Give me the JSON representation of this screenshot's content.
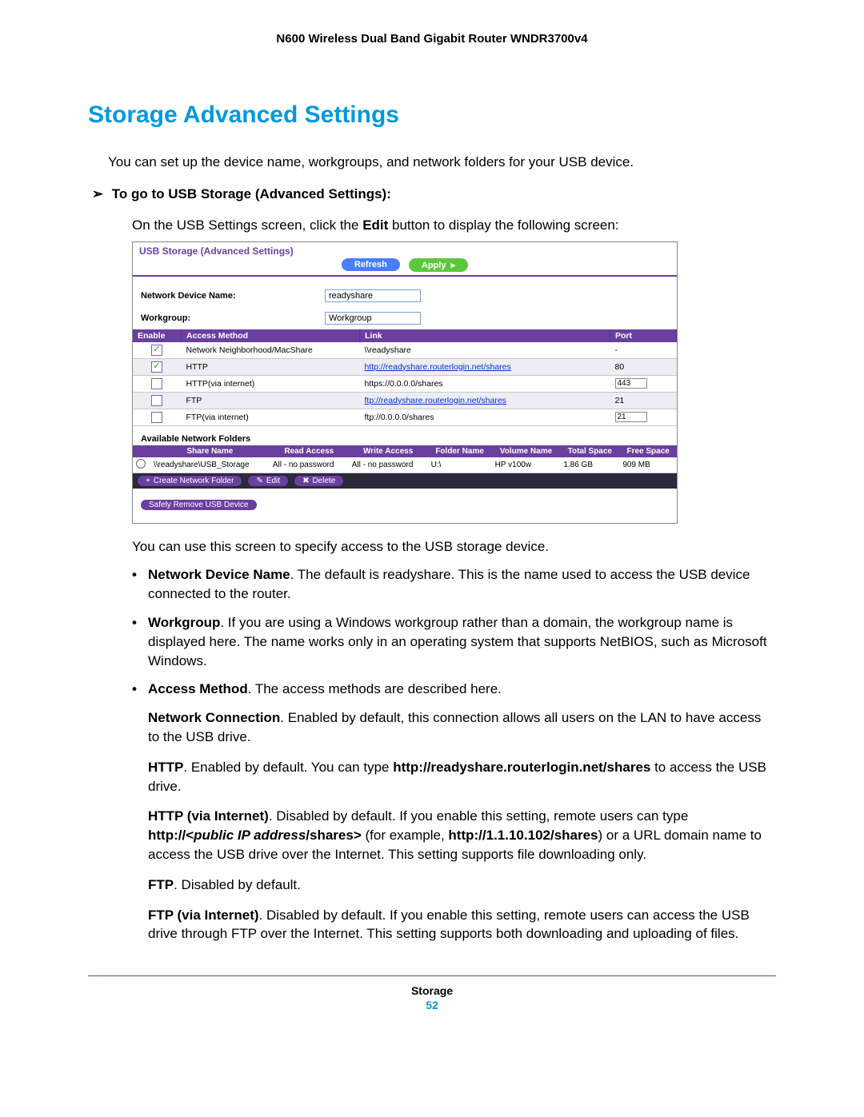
{
  "doc": {
    "header": "N600 Wireless Dual Band Gigabit Router WNDR3700v4",
    "section_title": "Storage Advanced Settings",
    "intro": "You can set up the device name, workgroups, and network folders for your USB device.",
    "step_arrow": "➢",
    "step_heading": "To go to USB Storage (Advanced Settings):",
    "step_body_a": "On the USB Settings screen, click the ",
    "step_body_bold": "Edit",
    "step_body_b": " button to display the following screen:",
    "after_screenshot": "You can use this screen to specify access to the USB storage device.",
    "bullets": {
      "ndn_label": "Network Device Name",
      "ndn_text": ". The default is readyshare. This is the name used to access the USB device connected to the router.",
      "wg_label": "Workgroup",
      "wg_text": ". If you are using a Windows workgroup rather than a domain, the workgroup name is displayed here. The name works only in an operating system that supports NetBIOS, such as Microsoft Windows.",
      "am_label": "Access Method",
      "am_text": ". The access methods are described here."
    },
    "subs": {
      "nc_label": "Network Connection",
      "nc_text": ". Enabled by default, this connection allows all users on the LAN to have access to the USB drive.",
      "http_label": "HTTP",
      "http_text_a": ". Enabled by default. You can type ",
      "http_bold": "http://readyshare.routerlogin.net/shares",
      "http_text_b": " to access the USB drive.",
      "httpi_label": "HTTP (via Internet)",
      "httpi_text_a": ". Disabled by default. If you enable this setting, remote users can type ",
      "httpi_bold1": "http://<",
      "httpi_italic": "public IP address",
      "httpi_bold2": "/shares>",
      "httpi_text_b": " (for example, ",
      "httpi_bold3": "http://1.1.10.102/shares",
      "httpi_text_c": ") or a URL domain name to access the USB drive over the Internet. This setting supports file downloading only.",
      "ftp_label": "FTP",
      "ftp_text": ". Disabled by default.",
      "ftpi_label": "FTP (via Internet)",
      "ftpi_text": ". Disabled by default. If you enable this setting, remote users can access the USB drive through FTP over the Internet. This setting supports both downloading and uploading of files."
    },
    "footer_label": "Storage",
    "footer_page": "52"
  },
  "screenshot": {
    "title": "USB Storage (Advanced Settings)",
    "buttons": {
      "refresh": "Refresh",
      "apply": "Apply",
      "apply_arrow": "▸"
    },
    "form": {
      "ndn_label": "Network Device Name:",
      "ndn_value": "readyshare",
      "wg_label": "Workgroup:",
      "wg_value": "Workgroup"
    },
    "cols": {
      "enable": "Enable",
      "method": "Access Method",
      "link": "Link",
      "port": "Port"
    },
    "rows": [
      {
        "checked": true,
        "method": "Network Neighborhood/MacShare",
        "link": "\\\\readyshare",
        "is_link": false,
        "port": "-",
        "port_editable": false,
        "alt": false
      },
      {
        "checked": true,
        "method": "HTTP",
        "link": "http://readyshare.routerlogin.net/shares",
        "is_link": true,
        "port": "80",
        "port_editable": false,
        "alt": true
      },
      {
        "checked": false,
        "method": "HTTP(via internet)",
        "link": "https://0.0.0.0/shares",
        "is_link": false,
        "port": "443",
        "port_editable": true,
        "alt": false
      },
      {
        "checked": false,
        "method": "FTP",
        "link": "ftp://readyshare.routerlogin.net/shares",
        "is_link": true,
        "port": "21",
        "port_editable": false,
        "alt": true
      },
      {
        "checked": false,
        "method": "FTP(via internet)",
        "link": "ftp://0.0.0.0/shares",
        "is_link": false,
        "port": "21",
        "port_editable": true,
        "alt": false
      }
    ],
    "folders_label": "Available Network Folders",
    "fcols": {
      "share": "Share Name",
      "read": "Read Access",
      "write": "Write Access",
      "folder": "Folder Name",
      "volume": "Volume Name",
      "total": "Total Space",
      "free": "Free Space"
    },
    "frow": {
      "share": "\\\\readyshare\\USB_Storage",
      "read": "All - no password",
      "write": "All - no password",
      "folder": "U:\\",
      "volume": "HP v100w",
      "total": "1.86 GB",
      "free": "909 MB"
    },
    "fbtns": {
      "create": "Create Network Folder",
      "edit": "Edit",
      "delete": "Delete",
      "plus": "+",
      "pencil": "✎",
      "x": "✖"
    },
    "safe_btn": "Safely Remove USB Device"
  }
}
